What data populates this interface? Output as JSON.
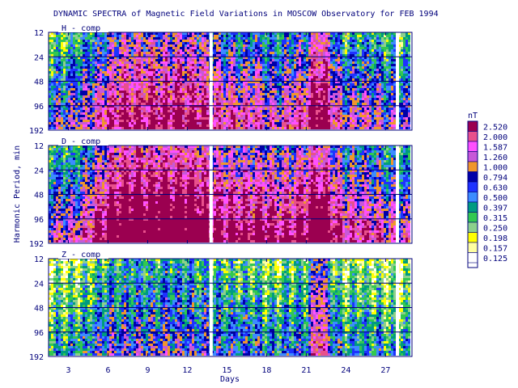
{
  "chart_data": {
    "type": "heatmap",
    "title": "DYNAMIC SPECTRA of Magnetic Field Variations in MOSCOW Observatory for FEB 1994",
    "xlabel": "Days",
    "ylabel": "Harmonic Period, min",
    "x_ticks": [
      "3",
      "6",
      "9",
      "12",
      "15",
      "18",
      "21",
      "24",
      "27"
    ],
    "x_tick_values": [
      3,
      6,
      9,
      12,
      15,
      18,
      21,
      24,
      27
    ],
    "xlim": [
      1.5,
      29.0
    ],
    "y_ticks": [
      "12",
      "24",
      "48",
      "96",
      "192"
    ],
    "y_tick_values": [
      12,
      24,
      48,
      96,
      192
    ],
    "ylim": [
      12,
      192
    ],
    "y_scale": "log",
    "panels": [
      {
        "name": "H - comp",
        "intensity_by_day": [
          0.3,
          0.3,
          0.3,
          0.5,
          0.8,
          1.1,
          1.4,
          1.4,
          1.4,
          1.4,
          1.4,
          1.5,
          1.4,
          1.1,
          1.0,
          0.9,
          1.0,
          0.7,
          0.6,
          1.0,
          1.0,
          1.9,
          1.1,
          0.5,
          0.6,
          0.6,
          0.4,
          0.3,
          0.3
        ],
        "period_weight": 0.9
      },
      {
        "name": "D - comp",
        "intensity_by_day": [
          0.4,
          0.5,
          0.5,
          0.6,
          1.2,
          1.6,
          1.9,
          1.9,
          1.9,
          1.9,
          1.9,
          1.9,
          1.8,
          1.4,
          1.4,
          1.4,
          1.4,
          1.4,
          1.2,
          1.4,
          1.4,
          2.0,
          1.4,
          0.9,
          1.0,
          0.9,
          0.6,
          0.5,
          0.4
        ],
        "period_weight": 1.0
      },
      {
        "name": "Z - comp",
        "intensity_by_day": [
          -0.1,
          0.0,
          0.0,
          0.1,
          0.3,
          0.5,
          0.6,
          0.6,
          0.5,
          0.6,
          0.6,
          0.6,
          0.5,
          0.4,
          0.4,
          0.3,
          0.3,
          0.1,
          0.1,
          0.3,
          0.3,
          1.6,
          0.4,
          0.0,
          0.1,
          0.1,
          0.0,
          -0.1,
          -0.1
        ],
        "period_weight": 0.6
      }
    ],
    "gaps_days": [
      13.8,
      27.9
    ],
    "colorbar": {
      "unit": "nT",
      "levels": [
        "0.125",
        "0.157",
        "0.198",
        "0.250",
        "0.315",
        "0.397",
        "0.500",
        "0.630",
        "0.794",
        "1.000",
        "1.260",
        "1.587",
        "2.000",
        "2.520"
      ],
      "colors": [
        "#ffffff",
        "#ffffa0",
        "#ffff00",
        "#8cd08c",
        "#32c850",
        "#009b80",
        "#3c8cff",
        "#1e32ff",
        "#0000a8",
        "#f0962c",
        "#c858d8",
        "#ff50ff",
        "#e8508c",
        "#9b0050"
      ]
    },
    "grid": true
  }
}
